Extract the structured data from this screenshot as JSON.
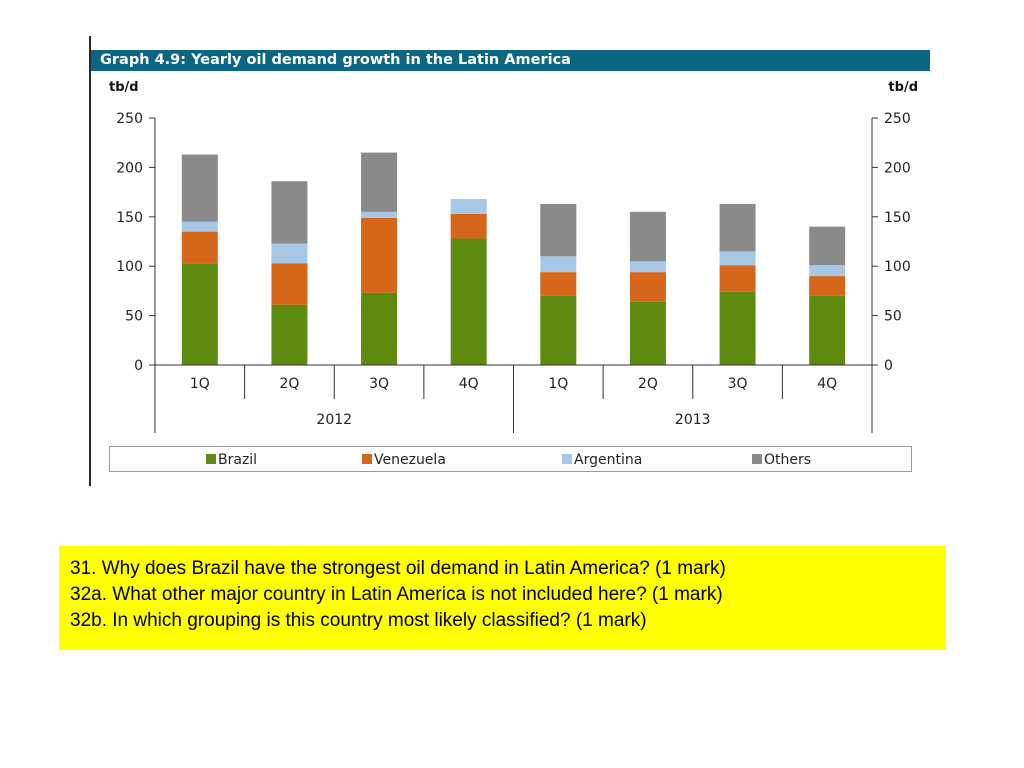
{
  "chart_data": {
    "type": "bar",
    "stacked": true,
    "title": "Graph 4.9: Yearly oil demand growth in the Latin America",
    "ylabel_left": "tb/d",
    "ylabel_right": "tb/d",
    "ylim": [
      0,
      250
    ],
    "yticks": [
      0,
      50,
      100,
      150,
      200,
      250
    ],
    "categories": [
      "1Q",
      "2Q",
      "3Q",
      "4Q",
      "1Q",
      "2Q",
      "3Q",
      "4Q"
    ],
    "groups": [
      {
        "label": "2012",
        "span": [
          0,
          3
        ]
      },
      {
        "label": "2013",
        "span": [
          4,
          7
        ]
      }
    ],
    "series": [
      {
        "name": "Brazil",
        "color": "#5f8a10",
        "values": [
          103,
          61,
          73,
          128,
          70,
          64,
          74,
          70
        ]
      },
      {
        "name": "Venezuela",
        "color": "#d5661a",
        "values": [
          32,
          42,
          76,
          25,
          24,
          30,
          27,
          20
        ]
      },
      {
        "name": "Argentina",
        "color": "#a7c7e7",
        "values": [
          10,
          20,
          6,
          15,
          16,
          11,
          14,
          11
        ]
      },
      {
        "name": "Others",
        "color": "#8a8a8a",
        "values": [
          68,
          63,
          60,
          0,
          53,
          50,
          48,
          39
        ]
      }
    ],
    "grid": false,
    "legend_position": "bottom"
  },
  "questions": [
    "31. Why does Brazil have the strongest oil demand in Latin America?  (1 mark)",
    "32a. What other major country in Latin America is not included here? (1 mark)",
    "32b.  In which grouping is this country most likely classified?   (1 mark)"
  ],
  "colors": {
    "title_bar": "#0d6584",
    "question_box": "#ffff00"
  }
}
